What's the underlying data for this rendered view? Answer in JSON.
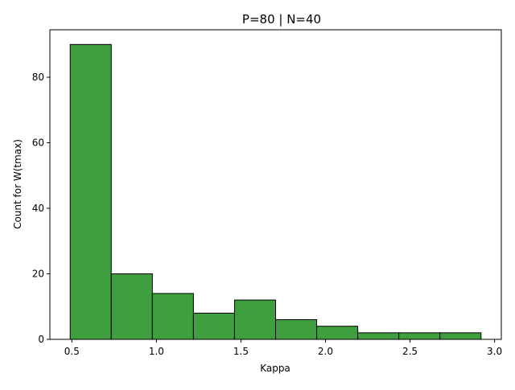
{
  "chart_data": {
    "type": "bar",
    "title": "P=80 | N=40",
    "xlabel": "Kappa",
    "ylabel": "Count for W(tmax)",
    "bin_edges": [
      0.49,
      0.733,
      0.976,
      1.219,
      1.462,
      1.705,
      1.948,
      2.191,
      2.434,
      2.677,
      2.92
    ],
    "values": [
      90,
      20,
      14,
      8,
      12,
      6,
      4,
      2,
      2,
      2
    ],
    "xlim": [
      0.37,
      3.04
    ],
    "ylim": [
      0,
      94.5
    ],
    "xticks": [
      0.5,
      1.0,
      1.5,
      2.0,
      2.5,
      3.0
    ],
    "xtick_labels": [
      "0.5",
      "1.0",
      "1.5",
      "2.0",
      "2.5",
      "3.0"
    ],
    "yticks": [
      0,
      20,
      40,
      60,
      80
    ],
    "ytick_labels": [
      "0",
      "20",
      "40",
      "60",
      "80"
    ],
    "grid": false,
    "bar_color": "#3f9f3f",
    "edge_color": "#000000"
  }
}
